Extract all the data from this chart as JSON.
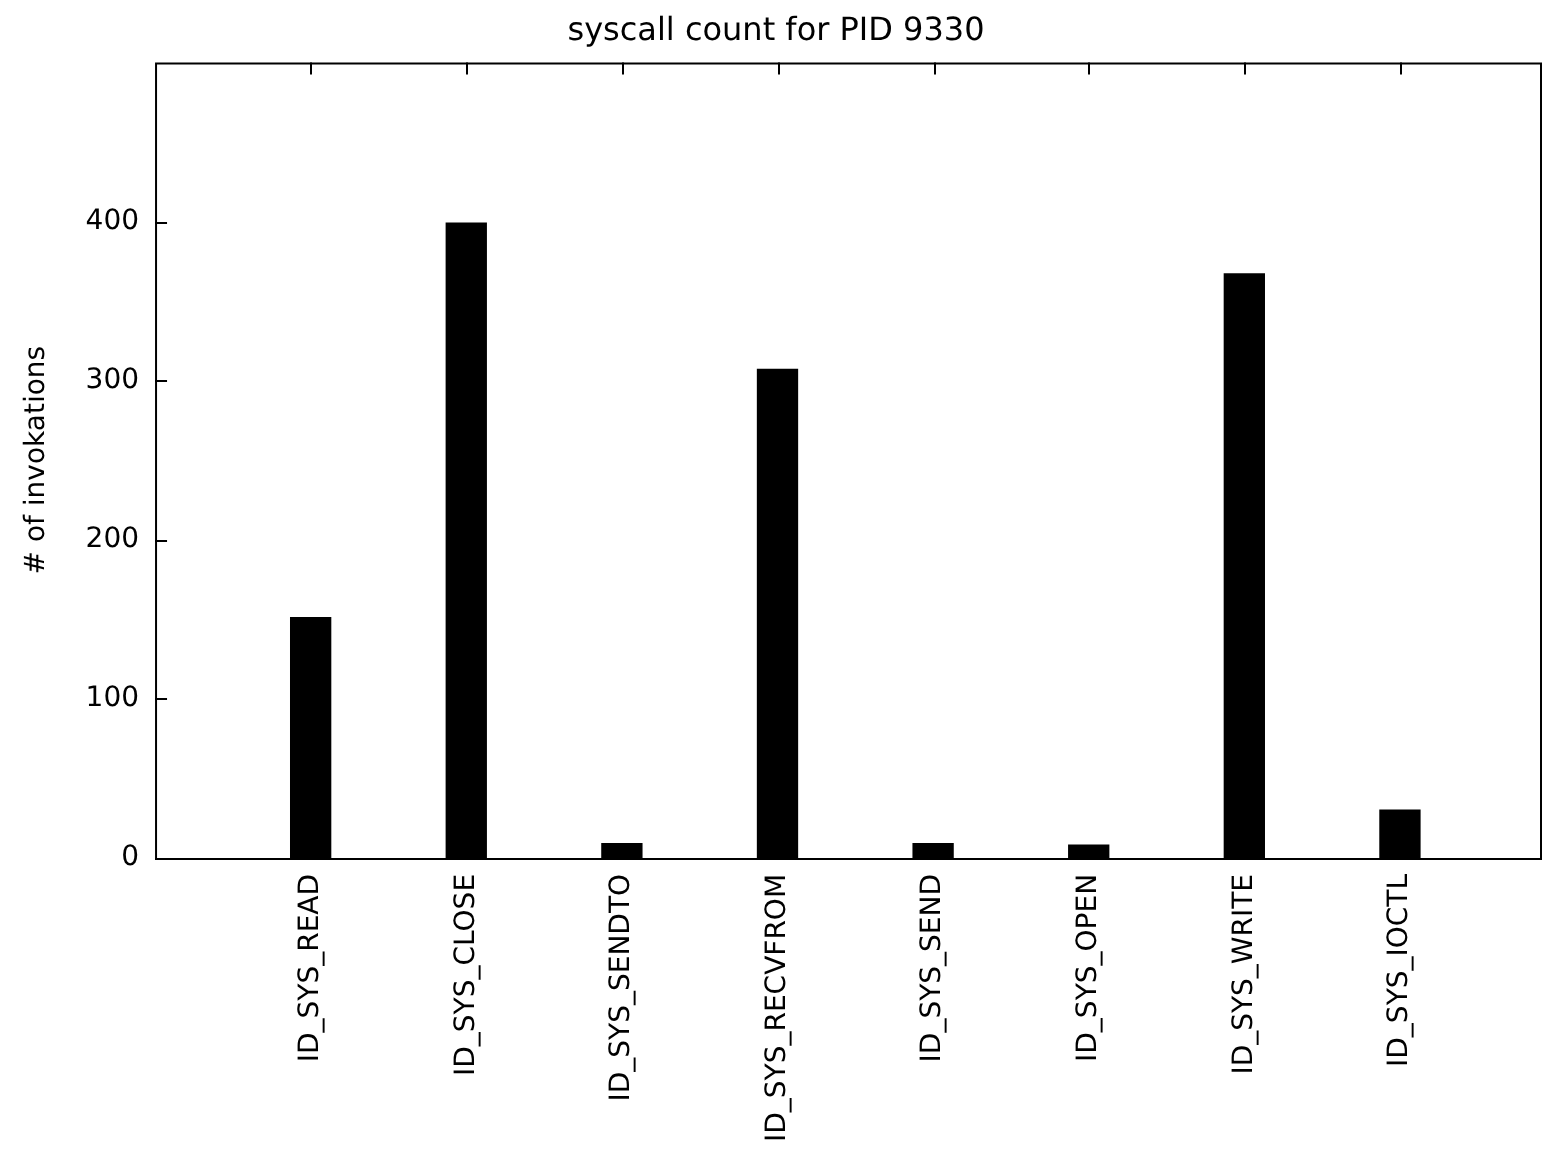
{
  "chart_data": {
    "type": "bar",
    "title": "syscall count for PID 9330",
    "ylabel": "# of invokations",
    "categories": [
      "ID_SYS_READ",
      "ID_SYS_CLOSE",
      "ID_SYS_SENDTO",
      "ID_SYS_RECVFROM",
      "ID_SYS_SEND",
      "ID_SYS_OPEN",
      "ID_SYS_WRITE",
      "ID_SYS_IOCTL"
    ],
    "values": [
      151,
      399,
      9,
      307,
      9,
      8,
      367,
      30
    ],
    "color": "#000000",
    "ylim": [
      0,
      500
    ],
    "yticks": [
      0,
      100,
      200,
      300,
      400
    ],
    "grid": false,
    "legend": false
  }
}
